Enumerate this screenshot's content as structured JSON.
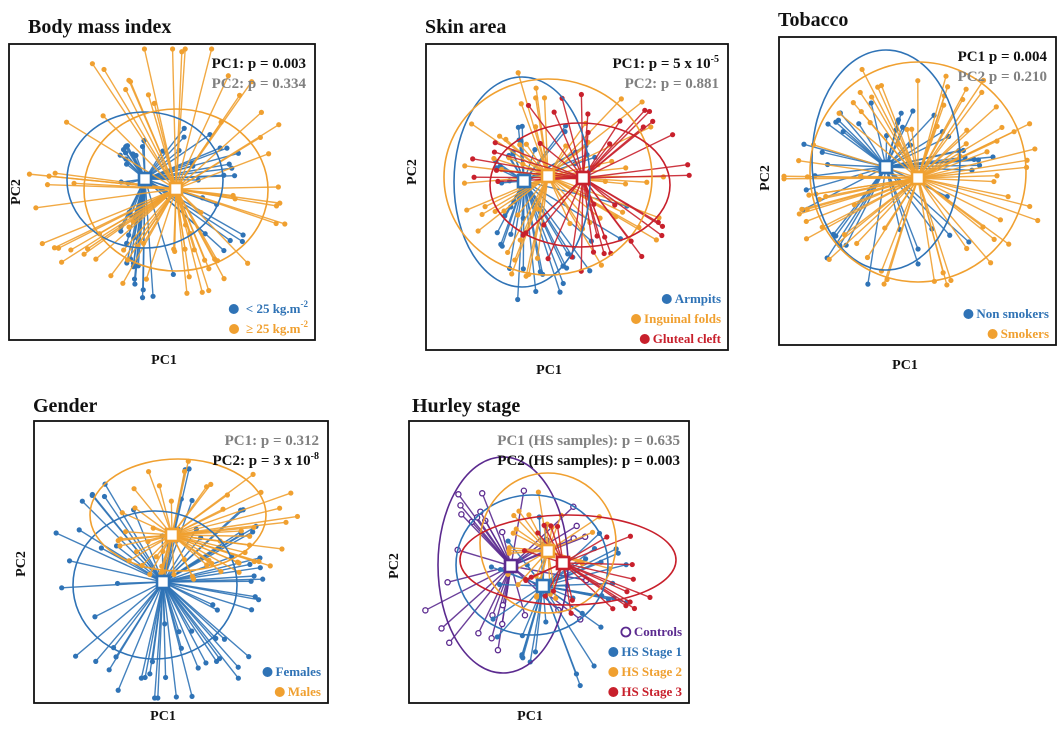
{
  "figure": {
    "colors": {
      "blue": "#2f73b6",
      "orange": "#f0a030",
      "red": "#c8202c",
      "purple": "#5b2a8f",
      "significant": "#111111",
      "not_significant": "#808080"
    }
  },
  "chart_data": [
    {
      "id": "bmi",
      "type": "scatter",
      "title": "Body mass index",
      "xlabel": "PC1",
      "ylabel": "PC2",
      "pvalues": [
        {
          "base": "PC1: p = 0.003",
          "sup": "",
          "significant": true
        },
        {
          "base": "PC2: p = 0.334",
          "sup": "",
          "significant": false
        }
      ],
      "legend_position": "bottom-right",
      "series": [
        {
          "name": "< 25 kg.m",
          "sup": "-2",
          "color": "#2f73b6",
          "centroid": [
            -0.15,
            0.05
          ],
          "n": 55
        },
        {
          "name": "≥ 25 kg.m",
          "sup": "-2",
          "color": "#f0a030",
          "centroid": [
            0.1,
            -0.02
          ],
          "n": 70
        }
      ]
    },
    {
      "id": "skin",
      "type": "scatter",
      "title": "Skin area",
      "xlabel": "PC1",
      "ylabel": "PC2",
      "pvalues": [
        {
          "base": "PC1: p = 5 x 10",
          "sup": "-5",
          "significant": true
        },
        {
          "base": "PC2: p = 0.881",
          "sup": "",
          "significant": false
        }
      ],
      "legend_position": "bottom-right",
      "series": [
        {
          "name": "Armpits",
          "sup": "",
          "color": "#2f73b6",
          "centroid": [
            -0.12,
            0.0
          ],
          "n": 45
        },
        {
          "name": "Inguinal folds",
          "sup": "",
          "color": "#f0a030",
          "centroid": [
            0.0,
            0.03
          ],
          "n": 55
        },
        {
          "name": "Gluteal cleft",
          "sup": "",
          "color": "#c8202c",
          "centroid": [
            0.15,
            0.02
          ],
          "n": 40
        }
      ]
    },
    {
      "id": "tobacco",
      "type": "scatter",
      "title": "Tobacco",
      "xlabel": "PC1",
      "ylabel": "PC2",
      "pvalues": [
        {
          "base": "PC1 p = 0.004",
          "sup": "",
          "significant": true
        },
        {
          "base": "PC2 p = 0.210",
          "sup": "",
          "significant": false
        }
      ],
      "legend_position": "bottom-right",
      "series": [
        {
          "name": "Non smokers",
          "sup": "",
          "color": "#2f73b6",
          "centroid": [
            -0.12,
            0.06
          ],
          "n": 45
        },
        {
          "name": "Smokers",
          "sup": "",
          "color": "#f0a030",
          "centroid": [
            0.1,
            0.0
          ],
          "n": 75
        }
      ]
    },
    {
      "id": "gender",
      "type": "scatter",
      "title": "Gender",
      "xlabel": "PC1",
      "ylabel": "PC2",
      "pvalues": [
        {
          "base": "PC1: p = 0.312",
          "sup": "",
          "significant": false
        },
        {
          "base": "PC2: p = 3 x 10",
          "sup": "-8",
          "significant": true
        }
      ],
      "legend_position": "bottom-right",
      "series": [
        {
          "name": "Females",
          "sup": "",
          "color": "#2f73b6",
          "centroid": [
            0.02,
            -0.12
          ],
          "n": 70
        },
        {
          "name": "Males",
          "sup": "",
          "color": "#f0a030",
          "centroid": [
            0.05,
            0.15
          ],
          "n": 55
        }
      ]
    },
    {
      "id": "hurley",
      "type": "scatter",
      "title": "Hurley stage",
      "xlabel": "PC1",
      "ylabel": "PC2",
      "pvalues": [
        {
          "base": "PC1 (HS samples): p = 0.635",
          "sup": "",
          "significant": false
        },
        {
          "base": "PC2 (HS samples): p = 0.003",
          "sup": "",
          "significant": true
        }
      ],
      "legend_position": "bottom-right",
      "series": [
        {
          "name": "Controls",
          "sup": "",
          "color": "#5b2a8f",
          "hollow": true,
          "centroid": [
            -0.12,
            -0.02
          ],
          "n": 30
        },
        {
          "name": "HS Stage 1",
          "sup": "",
          "color": "#2f73b6",
          "centroid": [
            0.08,
            -0.08
          ],
          "n": 35
        },
        {
          "name": "HS Stage 2",
          "sup": "",
          "color": "#f0a030",
          "centroid": [
            0.12,
            0.05
          ],
          "n": 25
        },
        {
          "name": "HS Stage 3",
          "sup": "",
          "color": "#c8202c",
          "centroid": [
            0.16,
            0.0
          ],
          "n": 22
        }
      ]
    }
  ]
}
